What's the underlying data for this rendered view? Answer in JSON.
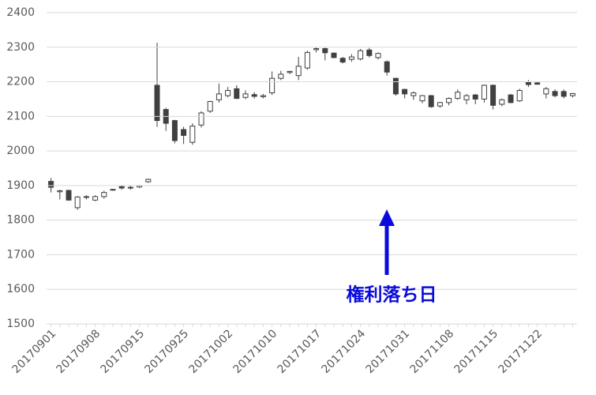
{
  "chart_data": {
    "type": "candlestick",
    "categories": [
      "20170901",
      null,
      null,
      null,
      null,
      "20170908",
      null,
      null,
      null,
      null,
      "20170915",
      null,
      null,
      null,
      null,
      "20170925",
      null,
      null,
      null,
      null,
      "20171002",
      null,
      null,
      null,
      null,
      "20171010",
      null,
      null,
      null,
      null,
      "20171017",
      null,
      null,
      null,
      null,
      "20171024",
      null,
      null,
      null,
      null,
      "20171031",
      null,
      null,
      null,
      null,
      "20171108",
      null,
      null,
      null,
      null,
      "20171115",
      null,
      null,
      null,
      null,
      "20171122",
      null,
      null,
      null,
      null
    ],
    "open": [
      1912,
      1882,
      1886,
      1836,
      1866,
      1858,
      1868,
      1887,
      1897,
      1895,
      1896,
      1911,
      2190,
      2120,
      2088,
      2062,
      2025,
      2075,
      2115,
      2148,
      2160,
      2180,
      2155,
      2163,
      2157,
      2168,
      2210,
      2227,
      2218,
      2240,
      2293,
      2296,
      2283,
      2268,
      2265,
      2266,
      2292,
      2270,
      2258,
      2210,
      2178,
      2160,
      2145,
      2160,
      2130,
      2140,
      2152,
      2148,
      2162,
      2150,
      2190,
      2135,
      2162,
      2145,
      2198,
      2197,
      2165,
      2172,
      2172,
      2160
    ],
    "high": [
      1922,
      1888,
      1888,
      1870,
      1872,
      1872,
      1885,
      1890,
      1900,
      1900,
      1902,
      1920,
      2313,
      2125,
      2090,
      2070,
      2080,
      2115,
      2145,
      2195,
      2185,
      2190,
      2175,
      2170,
      2165,
      2230,
      2232,
      2232,
      2272,
      2290,
      2300,
      2300,
      2285,
      2272,
      2280,
      2295,
      2298,
      2285,
      2262,
      2212,
      2180,
      2172,
      2162,
      2162,
      2142,
      2155,
      2178,
      2165,
      2165,
      2192,
      2192,
      2152,
      2165,
      2180,
      2205,
      2200,
      2185,
      2178,
      2178,
      2168
    ],
    "low": [
      1880,
      1860,
      1856,
      1830,
      1860,
      1855,
      1862,
      1885,
      1888,
      1888,
      1893,
      1908,
      2070,
      2058,
      2022,
      2020,
      2018,
      2068,
      2110,
      2140,
      2155,
      2150,
      2150,
      2152,
      2152,
      2162,
      2205,
      2222,
      2205,
      2235,
      2285,
      2262,
      2268,
      2253,
      2258,
      2262,
      2270,
      2265,
      2218,
      2160,
      2152,
      2148,
      2138,
      2125,
      2125,
      2132,
      2148,
      2135,
      2135,
      2140,
      2120,
      2130,
      2138,
      2142,
      2185,
      2192,
      2152,
      2155,
      2152,
      2155
    ],
    "close": [
      1895,
      1885,
      1858,
      1867,
      1868,
      1868,
      1880,
      1889,
      1893,
      1893,
      1900,
      1918,
      2088,
      2080,
      2030,
      2045,
      2072,
      2110,
      2143,
      2165,
      2175,
      2152,
      2165,
      2158,
      2160,
      2210,
      2222,
      2230,
      2245,
      2285,
      2296,
      2284,
      2270,
      2257,
      2272,
      2290,
      2276,
      2282,
      2228,
      2165,
      2165,
      2168,
      2160,
      2128,
      2140,
      2152,
      2170,
      2160,
      2150,
      2190,
      2132,
      2148,
      2140,
      2175,
      2192,
      2193,
      2180,
      2160,
      2158,
      2166
    ],
    "ylim": [
      1500,
      2400
    ],
    "yticks": [
      1500,
      1600,
      1700,
      1800,
      1900,
      2000,
      2100,
      2200,
      2300,
      2400
    ],
    "grid": true,
    "up_color": "#ffffff",
    "down_color": "#404040",
    "annotation": "権利落ち日"
  }
}
